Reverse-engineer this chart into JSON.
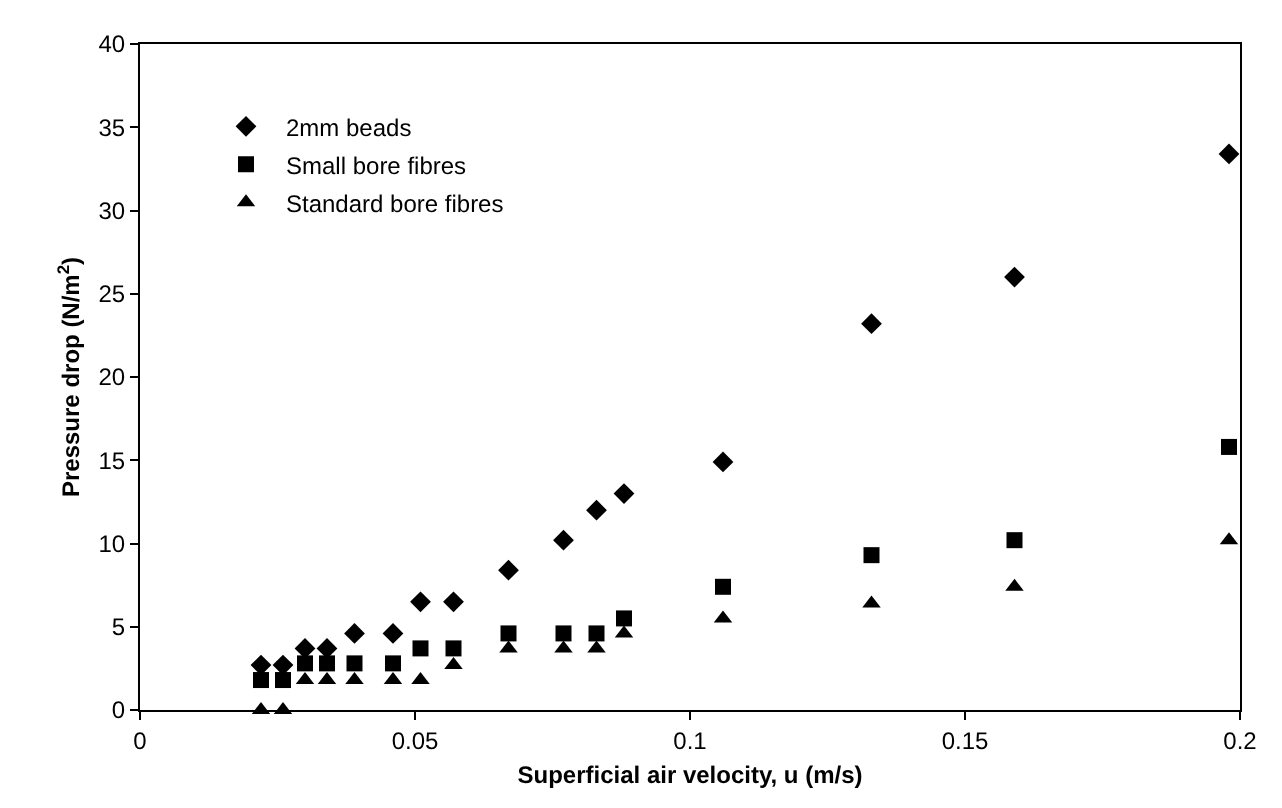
{
  "chart_data": {
    "type": "scatter",
    "xlabel": "Superficial air velocity, u (m/s)",
    "ylabel": "Pressure drop (N/m$^{2}$)",
    "x": [
      0.022,
      0.026,
      0.03,
      0.034,
      0.039,
      0.046,
      0.051,
      0.057,
      0.067,
      0.077,
      0.083,
      0.088,
      0.106,
      0.133,
      0.159,
      0.198
    ],
    "series": [
      {
        "name": "2mm beads",
        "color": "#000000",
        "marker": "diamond",
        "values": [
          2.7,
          2.7,
          3.7,
          3.7,
          4.6,
          4.6,
          6.5,
          6.5,
          8.4,
          10.2,
          12.0,
          13.0,
          14.9,
          23.2,
          26.0,
          33.4
        ]
      },
      {
        "name": "Small bore fibres",
        "color": "#000000",
        "marker": "square",
        "values": [
          1.8,
          1.8,
          2.8,
          2.8,
          2.8,
          2.8,
          3.7,
          3.7,
          4.6,
          4.6,
          4.6,
          5.5,
          7.4,
          9.3,
          10.2,
          15.8
        ]
      },
      {
        "name": "Standard bore fibres",
        "color": "#000000",
        "marker": "triangle",
        "values": [
          0,
          0,
          1.8,
          1.8,
          1.8,
          1.8,
          1.8,
          2.7,
          3.7,
          3.7,
          3.7,
          4.6,
          5.5,
          6.4,
          7.4,
          10.2
        ]
      }
    ],
    "xlim": [
      0,
      0.2
    ],
    "xticks": [
      0,
      0.05,
      0.1,
      0.15,
      0.2
    ],
    "ylim": [
      0,
      40
    ],
    "yticks": [
      0,
      5,
      10,
      15,
      20,
      25,
      30,
      35,
      40
    ],
    "legend": "top left"
  }
}
